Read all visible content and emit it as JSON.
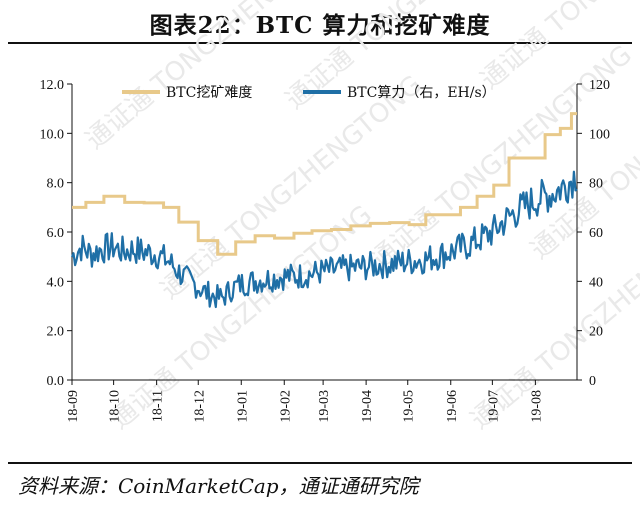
{
  "figure": {
    "title": "图表22：BTC 算力和挖矿难度",
    "source": "资料来源：CoinMarketCap，通证通研究院"
  },
  "chart_data": {
    "type": "line",
    "legend_position": "top",
    "grid": false,
    "x_ticks": [
      "18-09",
      "18-10",
      "18-11",
      "18-12",
      "19-01",
      "19-02",
      "19-03",
      "19-04",
      "19-05",
      "19-06",
      "19-07",
      "19-08"
    ],
    "x_range": [
      "2018-09-01",
      "2019-08-31"
    ],
    "y_left": {
      "ticks": [
        "0.0",
        "2.0",
        "4.0",
        "6.0",
        "8.0",
        "10.0",
        "12.0"
      ],
      "range": [
        0,
        12
      ]
    },
    "y_right": {
      "ticks": [
        "0",
        "20",
        "40",
        "60",
        "80",
        "100",
        "120"
      ],
      "range": [
        0,
        120
      ]
    },
    "series": [
      {
        "name": "BTC挖矿难度",
        "axis": "left",
        "color": "#e8c98a",
        "step": true,
        "points": [
          [
            "2018-09-01",
            7.0
          ],
          [
            "2018-09-11",
            7.2
          ],
          [
            "2018-09-24",
            7.45
          ],
          [
            "2018-10-09",
            7.2
          ],
          [
            "2018-10-23",
            7.18
          ],
          [
            "2018-11-06",
            7.0
          ],
          [
            "2018-11-17",
            6.4
          ],
          [
            "2018-12-01",
            5.65
          ],
          [
            "2018-12-15",
            5.1
          ],
          [
            "2018-12-28",
            5.6
          ],
          [
            "2019-01-11",
            5.85
          ],
          [
            "2019-01-25",
            5.75
          ],
          [
            "2019-02-08",
            5.95
          ],
          [
            "2019-02-21",
            6.05
          ],
          [
            "2019-03-07",
            6.1
          ],
          [
            "2019-03-21",
            6.25
          ],
          [
            "2019-04-04",
            6.35
          ],
          [
            "2019-04-18",
            6.38
          ],
          [
            "2019-05-02",
            6.3
          ],
          [
            "2019-05-14",
            6.7
          ],
          [
            "2019-05-28",
            6.7
          ],
          [
            "2019-06-08",
            7.0
          ],
          [
            "2019-06-20",
            7.45
          ],
          [
            "2019-07-02",
            7.9
          ],
          [
            "2019-07-13",
            9.0
          ],
          [
            "2019-07-27",
            9.0
          ],
          [
            "2019-08-08",
            9.95
          ],
          [
            "2019-08-19",
            10.2
          ],
          [
            "2019-08-27",
            10.8
          ],
          [
            "2019-08-31",
            10.8
          ]
        ]
      },
      {
        "name": "BTC算力（右，EH/s）",
        "axis": "right",
        "color": "#1f6fa6",
        "points": [
          [
            "2018-09-01",
            50
          ],
          [
            "2018-09-08",
            54
          ],
          [
            "2018-09-15",
            51
          ],
          [
            "2018-09-22",
            53
          ],
          [
            "2018-10-01",
            54
          ],
          [
            "2018-10-08",
            52
          ],
          [
            "2018-10-15",
            53
          ],
          [
            "2018-10-22",
            52
          ],
          [
            "2018-11-01",
            51
          ],
          [
            "2018-11-10",
            48
          ],
          [
            "2018-11-20",
            42
          ],
          [
            "2018-11-28",
            39
          ],
          [
            "2018-12-05",
            36
          ],
          [
            "2018-12-12",
            34
          ],
          [
            "2018-12-18",
            33
          ],
          [
            "2018-12-25",
            37
          ],
          [
            "2019-01-01",
            39
          ],
          [
            "2019-01-10",
            40
          ],
          [
            "2019-01-20",
            41
          ],
          [
            "2019-02-01",
            42
          ],
          [
            "2019-02-10",
            42
          ],
          [
            "2019-02-20",
            43
          ],
          [
            "2019-03-01",
            44
          ],
          [
            "2019-03-15",
            45
          ],
          [
            "2019-04-01",
            46
          ],
          [
            "2019-04-15",
            47
          ],
          [
            "2019-05-01",
            48
          ],
          [
            "2019-05-15",
            49
          ],
          [
            "2019-06-01",
            52
          ],
          [
            "2019-06-15",
            55
          ],
          [
            "2019-07-01",
            60
          ],
          [
            "2019-07-15",
            67
          ],
          [
            "2019-08-01",
            73
          ],
          [
            "2019-08-15",
            76
          ],
          [
            "2019-08-25",
            80
          ],
          [
            "2019-08-31",
            84
          ]
        ]
      }
    ]
  },
  "watermark": "通证通 TONGZHENGTONG"
}
